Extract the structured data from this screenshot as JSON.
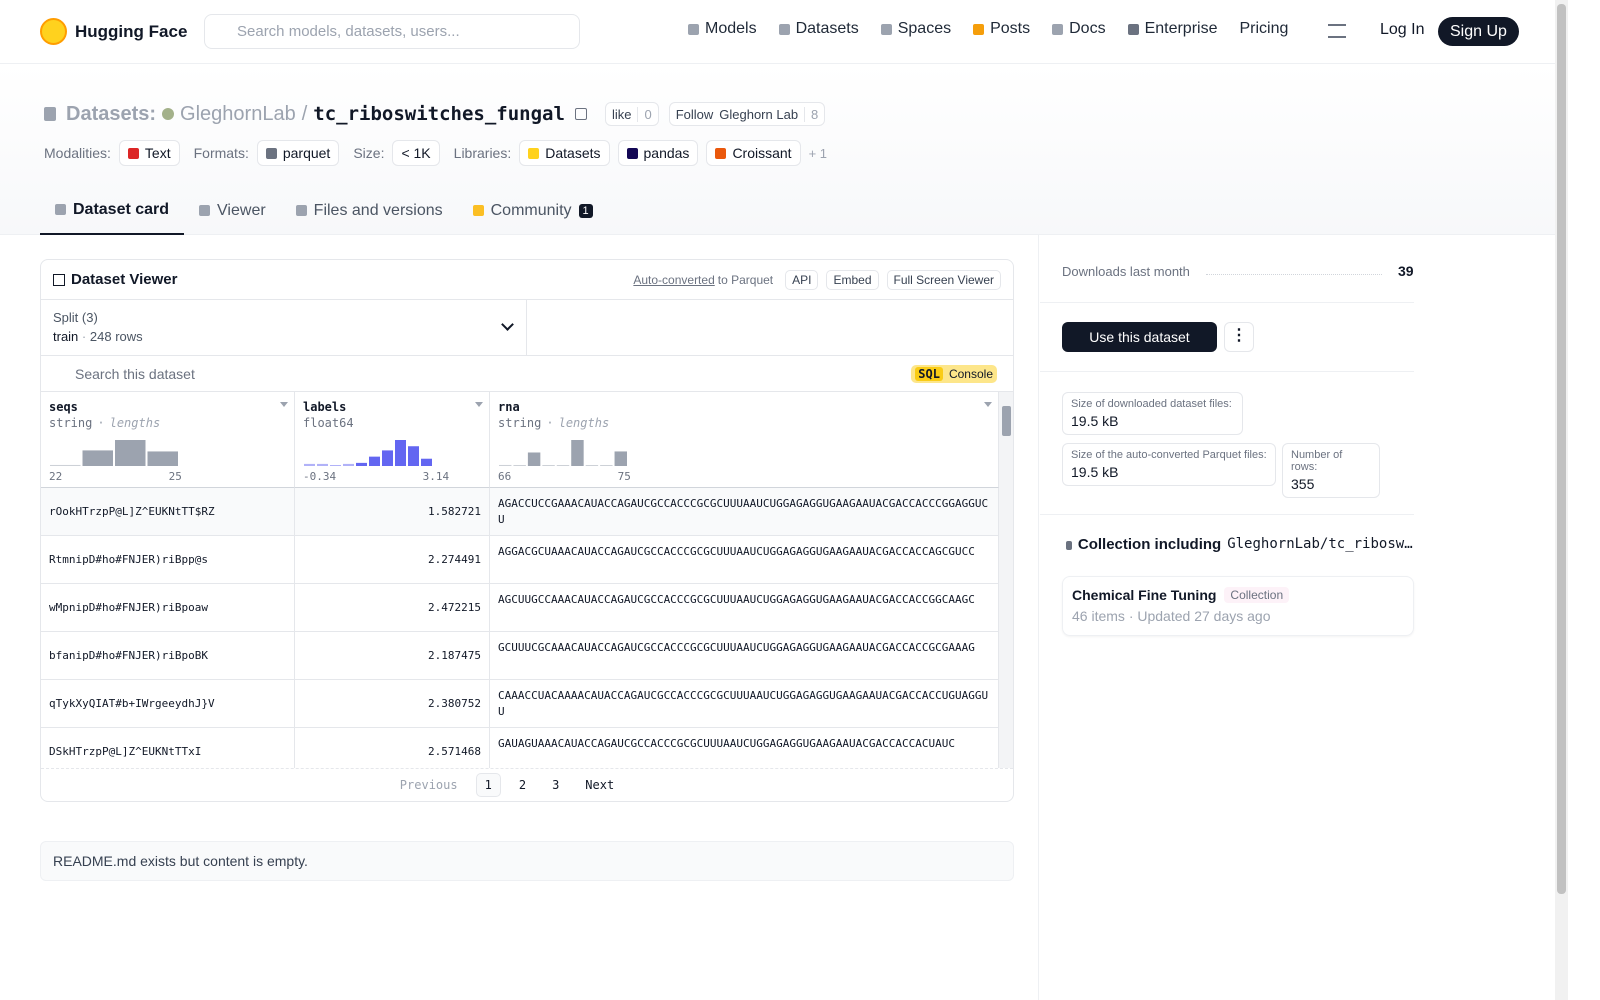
{
  "nav": {
    "brand": "Hugging Face",
    "search_placeholder": "Search models, datasets, users...",
    "links": [
      "Models",
      "Datasets",
      "Spaces",
      "Posts",
      "Docs",
      "Enterprise",
      "Pricing"
    ],
    "login": "Log In",
    "signup": "Sign Up"
  },
  "header": {
    "section": "Datasets:",
    "owner": "GleghornLab",
    "separator": "/",
    "name": "tc_riboswitches_fungal",
    "like": "like",
    "like_count": 0,
    "follow": "Follow",
    "follow_name": "Gleghorn Lab",
    "follow_count": 8,
    "tags": [
      {
        "label": "Modalities:",
        "items": [
          "Text"
        ]
      },
      {
        "label": "Formats:",
        "items": [
          "parquet"
        ]
      },
      {
        "label": "Size:",
        "items": [
          "< 1K"
        ]
      },
      {
        "label": "Libraries:",
        "items": [
          "Datasets",
          "pandas",
          "Croissant"
        ]
      }
    ],
    "more": "+ 1"
  },
  "tabs": [
    "Dataset card",
    "Viewer",
    "Files and versions",
    "Community"
  ],
  "community_count": 1,
  "viewer": {
    "title": "Dataset Viewer",
    "auto": "Auto-converted",
    "to_parquet": "to Parquet",
    "api": "API",
    "embed": "Embed",
    "fullscreen": "Full Screen Viewer",
    "split_label": "Split (3)",
    "split": "train",
    "split_sep": "·",
    "split_rows": "248 rows",
    "search_placeholder": "Search this dataset",
    "sql": "SQL",
    "console": "Console",
    "columns": [
      {
        "name": "seqs",
        "type": "string",
        "sep": "·",
        "hint": "lengths",
        "histogram": [
          1,
          15,
          25,
          14
        ],
        "min": 22,
        "max": 25
      },
      {
        "name": "labels",
        "type": "float64",
        "histogram": [
          2,
          2,
          0,
          2,
          3,
          9,
          15,
          25,
          19,
          7
        ],
        "min": -0.34,
        "max": 3.14
      },
      {
        "name": "rna",
        "type": "string",
        "sep": "·",
        "hint": "lengths",
        "histogram": [
          1,
          0,
          13,
          0,
          0,
          25,
          0,
          0,
          14
        ],
        "min": 66,
        "max": 75
      }
    ],
    "rows": [
      [
        "rOokHTrzpP@L]Z^EUKNtTT$RZ",
        1.582721,
        "AGACCUCCGAAACAUACCAGAUCGCCACCCGCGCUUUAAUCUGGAGAGGUGAAGAAUACGACCACCCGGAGGUCU"
      ],
      [
        "RtmnipD#ho#FNJER)riBpp@s",
        2.274491,
        "AGGACGCUAAACAUACCAGAUCGCCACCCGCGCUUUAAUCUGGAGAGGUGAAGAAUACGACCACCAGCGUCC"
      ],
      [
        "wMpnipD#ho#FNJER)riBpoaw",
        2.472215,
        "AGCUUGCCAAACAUACCAGAUCGCCACCCGCGCUUUAAUCUGGAGAGGUGAAGAAUACGACCACCGGCAAGC"
      ],
      [
        "bfanipD#ho#FNJER)riBpoBK",
        2.187475,
        "GCUUUCGCAAACAUACCAGAUCGCCACCCGCGCUUUAAUCUGGAGAGGUGAAGAAUACGACCACCGCGAAAG"
      ],
      [
        "qTykXyQIAT#b+IWrgeeydhJ}V",
        2.380752,
        "CAAACCUACAAAACAUACCAGAUCGCCACCCGCGCUUUAAUCUGGAGAGGUGAAGAAUACGACCACCUGUAGGUU"
      ],
      [
        "DSkHTrzpP@L]Z^EUKNtTTxI",
        2.571468,
        "GAUAGUAAACAUACCAGAUCGCCACCCGCGCUUUAAUCUGGAGAGGUGAAGAAUACGACCACCACUAUC"
      ]
    ],
    "previous": "Previous",
    "pages": [
      1,
      2,
      3
    ],
    "next": "Next"
  },
  "readme": "README.md exists but content is empty.",
  "sidebar": {
    "downloads_label": "Downloads last month",
    "downloads": 39,
    "use": "Use this dataset",
    "download_size_label": "Size of downloaded dataset files:",
    "download_size": "19.5 kB",
    "parquet_size_label": "Size of the auto-converted Parquet files:",
    "parquet_size": "19.5 kB",
    "rows_label": "Number of rows:",
    "rows": 355,
    "collection_heading": "Collection including",
    "collection_dataset": "GleghornLab/tc_riboswitches_fungal",
    "collection_name": "Chemical Fine Tuning",
    "collection_badge": "Collection",
    "collection_items": "46 items",
    "collection_sep": "·",
    "collection_updated": "Updated 27 days ago"
  }
}
